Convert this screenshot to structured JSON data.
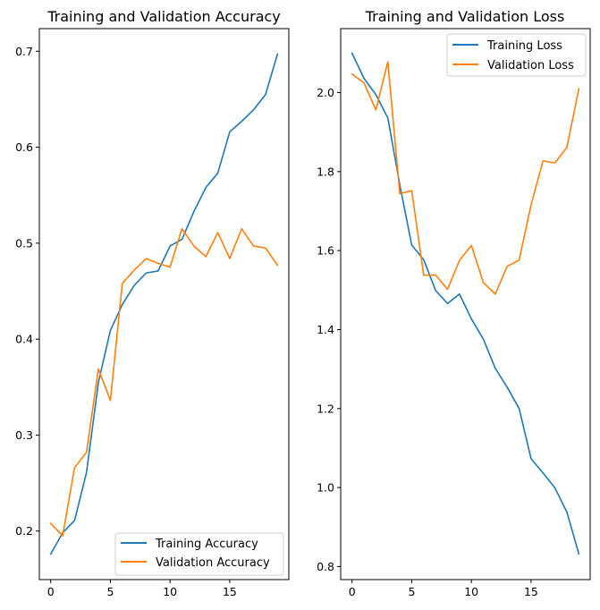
{
  "colors": {
    "training": "#1f77b4",
    "validation": "#ff7f0e",
    "axes": "#000000",
    "legend_border": "#cccccc"
  },
  "chart_data": [
    {
      "type": "line",
      "title": "Training and Validation Accuracy",
      "xlabel": "",
      "ylabel": "",
      "xlim": [
        -0.95,
        19.95
      ],
      "ylim": [
        0.1494,
        0.7236
      ],
      "xticks": [
        0,
        5,
        10,
        15
      ],
      "xtick_labels": [
        "0",
        "5",
        "10",
        "15"
      ],
      "yticks": [
        0.2,
        0.3,
        0.4,
        0.5,
        0.6,
        0.7
      ],
      "ytick_labels": [
        "0.2",
        "0.3",
        "0.4",
        "0.5",
        "0.6",
        "0.7"
      ],
      "grid": false,
      "legend_position": "lower-right",
      "x": [
        0,
        1,
        2,
        3,
        4,
        5,
        6,
        7,
        8,
        9,
        10,
        11,
        12,
        13,
        14,
        15,
        16,
        17,
        18,
        19
      ],
      "series": [
        {
          "name": "Training Accuracy",
          "color": "#1f77b4",
          "values": [
            0.176,
            0.198,
            0.211,
            0.261,
            0.355,
            0.409,
            0.436,
            0.456,
            0.469,
            0.471,
            0.497,
            0.504,
            0.533,
            0.558,
            0.573,
            0.616,
            0.627,
            0.639,
            0.655,
            0.697
          ]
        },
        {
          "name": "Validation Accuracy",
          "color": "#ff7f0e",
          "values": [
            0.208,
            0.195,
            0.266,
            0.282,
            0.369,
            0.336,
            0.458,
            0.472,
            0.484,
            0.479,
            0.475,
            0.515,
            0.497,
            0.486,
            0.511,
            0.484,
            0.515,
            0.497,
            0.495,
            0.477
          ]
        }
      ]
    },
    {
      "type": "line",
      "title": "Training and Validation Loss",
      "xlabel": "",
      "ylabel": "",
      "xlim": [
        -0.95,
        19.95
      ],
      "ylim": [
        0.767,
        2.162
      ],
      "xticks": [
        0,
        5,
        10,
        15
      ],
      "xtick_labels": [
        "0",
        "5",
        "10",
        "15"
      ],
      "yticks": [
        0.8,
        1.0,
        1.2,
        1.4,
        1.6,
        1.8,
        2.0
      ],
      "ytick_labels": [
        "0.8",
        "1.0",
        "1.2",
        "1.4",
        "1.6",
        "1.8",
        "2.0"
      ],
      "grid": false,
      "legend_position": "upper-right",
      "x": [
        0,
        1,
        2,
        3,
        4,
        5,
        6,
        7,
        8,
        9,
        10,
        11,
        12,
        13,
        14,
        15,
        16,
        17,
        18,
        19
      ],
      "series": [
        {
          "name": "Training Loss",
          "color": "#1f77b4",
          "values": [
            2.1,
            2.036,
            1.995,
            1.936,
            1.767,
            1.614,
            1.577,
            1.499,
            1.466,
            1.49,
            1.427,
            1.376,
            1.302,
            1.254,
            1.2,
            1.073,
            1.037,
            0.999,
            0.938,
            0.832
          ]
        },
        {
          "name": "Validation Loss",
          "color": "#ff7f0e",
          "values": [
            2.047,
            2.025,
            1.956,
            2.078,
            1.744,
            1.752,
            1.538,
            1.538,
            1.502,
            1.575,
            1.613,
            1.519,
            1.49,
            1.56,
            1.576,
            1.716,
            1.827,
            1.822,
            1.861,
            2.01
          ]
        }
      ]
    }
  ]
}
